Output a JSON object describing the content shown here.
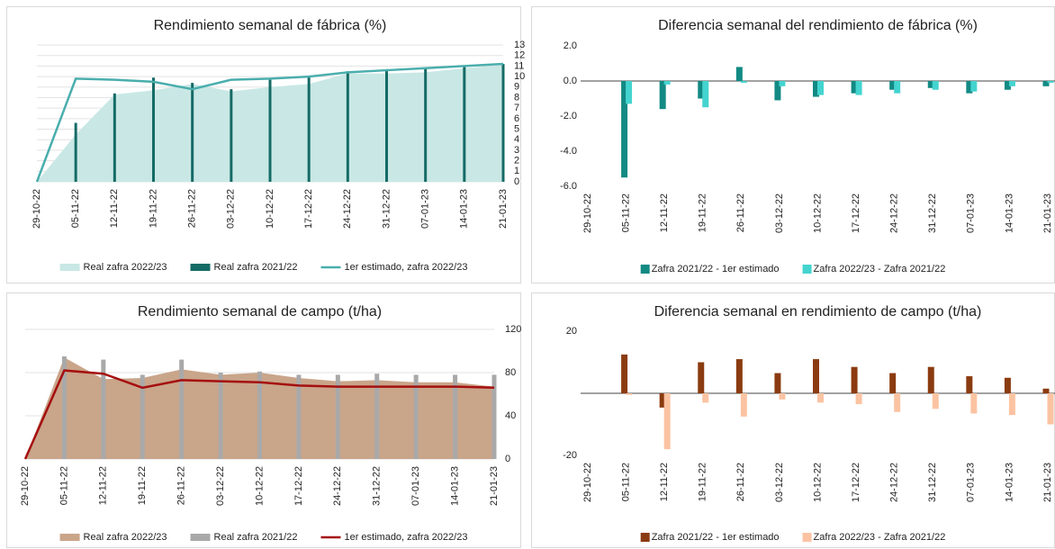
{
  "chart_data": [
    {
      "type": "combo",
      "title": "Rendimiento semanal de fábrica (%)",
      "title_color": "#1e9488",
      "categories": [
        "29-10-22",
        "05-11-22",
        "12-11-22",
        "19-11-22",
        "26-11-22",
        "03-12-22",
        "10-12-22",
        "17-12-22",
        "24-12-22",
        "31-12-22",
        "07-01-23",
        "14-01-23",
        "21-01-23"
      ],
      "series": [
        {
          "name": "Real zafra 2022/23",
          "kind": "area",
          "color": "#c9e8e5",
          "values": [
            0,
            4.5,
            8.3,
            8.7,
            9.3,
            8.6,
            9.0,
            9.3,
            10.3,
            10.3,
            10.4,
            10.8,
            11.1
          ]
        },
        {
          "name": "Real zafra 2021/22",
          "kind": "bar",
          "color": "#156b66",
          "values": [
            0,
            5.6,
            8.4,
            9.9,
            9.4,
            8.8,
            9.7,
            10.1,
            10.5,
            10.7,
            10.8,
            11.0,
            11.2
          ]
        },
        {
          "name": "1er estimado, zafra 2022/23",
          "kind": "line",
          "color": "#4aaead",
          "values": [
            0,
            9.8,
            9.7,
            9.5,
            8.8,
            9.7,
            9.8,
            10.0,
            10.4,
            10.6,
            10.8,
            11.0,
            11.2
          ]
        }
      ],
      "ylim": [
        0,
        13
      ],
      "yticks": [
        0,
        1,
        2,
        3,
        4,
        5,
        6,
        7,
        8,
        9,
        10,
        11,
        12,
        13
      ],
      "y_axis_side": "right",
      "grid": true
    },
    {
      "type": "bar",
      "title": "Diferencia semanal del rendimiento de fábrica (%)",
      "title_color": "#1e9488",
      "categories": [
        "29-10-22",
        "05-11-22",
        "12-11-22",
        "19-11-22",
        "26-11-22",
        "03-12-22",
        "10-12-22",
        "17-12-22",
        "24-12-22",
        "31-12-22",
        "07-01-23",
        "14-01-23",
        "21-01-23"
      ],
      "series": [
        {
          "name": "Zafra 2021/22 - 1er estimado",
          "color": "#138a84",
          "values": [
            null,
            -5.5,
            -1.6,
            -1.0,
            0.8,
            -1.1,
            -0.9,
            -0.7,
            -0.5,
            -0.4,
            -0.7,
            -0.5,
            -0.3
          ]
        },
        {
          "name": "Zafra 2022/23 - Zafra 2021/22",
          "color": "#44d4cf",
          "values": [
            null,
            -1.3,
            -0.2,
            -1.5,
            -0.1,
            -0.3,
            -0.8,
            -0.8,
            -0.7,
            -0.5,
            -0.6,
            -0.3,
            -0.1
          ]
        }
      ],
      "ylim": [
        -6,
        2
      ],
      "yticks": [
        {
          "value": -6,
          "label": "-6.0"
        },
        {
          "value": -4,
          "label": "-4.0"
        },
        {
          "value": -2,
          "label": "-2.0"
        },
        {
          "value": 0,
          "label": "0.0"
        },
        {
          "value": 2,
          "label": "2.0"
        }
      ],
      "y_axis_side": "left",
      "grid": false
    },
    {
      "type": "combo",
      "title": "Rendimiento semanal de campo (t/ha)",
      "title_color": "#c85e10",
      "categories": [
        "29-10-22",
        "05-11-22",
        "12-11-22",
        "19-11-22",
        "26-11-22",
        "03-12-22",
        "10-12-22",
        "17-12-22",
        "24-12-22",
        "31-12-22",
        "07-01-23",
        "14-01-23",
        "21-01-23"
      ],
      "series": [
        {
          "name": "Real zafra 2022/23",
          "kind": "area",
          "color": "#c9a58a",
          "values": [
            0,
            94,
            74,
            75,
            83,
            78,
            80,
            75,
            72,
            73,
            71,
            71,
            67
          ]
        },
        {
          "name": "Real zafra 2021/22",
          "kind": "bar",
          "color": "#a9a9a9",
          "values": [
            0,
            95,
            92,
            78,
            92,
            80,
            81,
            78,
            78,
            79,
            78,
            78,
            78
          ]
        },
        {
          "name": "1er estimado, zafra 2022/23",
          "kind": "line",
          "color": "#a50f0f",
          "values": [
            0,
            82,
            79,
            66,
            73,
            72,
            71,
            68,
            67,
            67,
            67,
            67,
            66
          ]
        }
      ],
      "ylim": [
        0,
        120
      ],
      "yticks": [
        0,
        40,
        80,
        120
      ],
      "y_axis_side": "right",
      "grid": true
    },
    {
      "type": "bar",
      "title": "Diferencia semanal en rendimiento de campo (t/ha)",
      "title_color": "#c85e10",
      "categories": [
        "29-10-22",
        "05-11-22",
        "12-11-22",
        "19-11-22",
        "26-11-22",
        "03-12-22",
        "10-12-22",
        "17-12-22",
        "24-12-22",
        "31-12-22",
        "07-01-23",
        "14-01-23",
        "21-01-23"
      ],
      "series": [
        {
          "name": "Zafra 2021/22 - 1er estimado",
          "color": "#8b3b10",
          "values": [
            null,
            12.5,
            -4.6,
            10,
            11,
            6.5,
            11,
            8.5,
            6.5,
            8.5,
            5.5,
            5,
            1.5
          ]
        },
        {
          "name": "Zafra 2022/23 - Zafra 2021/22",
          "color": "#fbc3a2",
          "values": [
            null,
            -0.5,
            -18,
            -3,
            -7.5,
            -2,
            -3,
            -3.5,
            -6,
            -5,
            -6.5,
            -7,
            -10
          ]
        }
      ],
      "ylim": [
        -20,
        20
      ],
      "yticks": [
        -20,
        20
      ],
      "y_axis_side": "left",
      "grid": false
    }
  ]
}
